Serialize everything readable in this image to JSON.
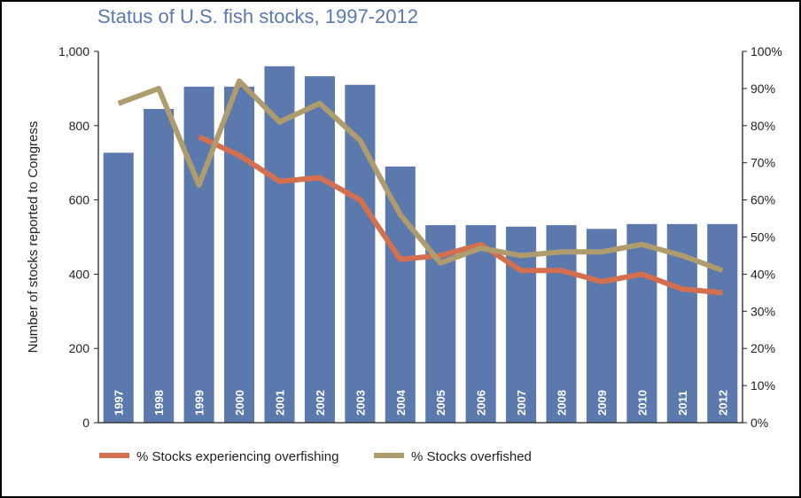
{
  "chart_data": {
    "type": "bar",
    "title": "Status of U.S. fish stocks, 1997-2012",
    "ylabel": "Number of stocks reported to Congress",
    "xlabel": "",
    "ylim": [
      0,
      1000
    ],
    "y2lim": [
      0,
      100
    ],
    "yticks": [
      "0",
      "200",
      "400",
      "600",
      "800",
      "1,000"
    ],
    "y2ticks": [
      "0%",
      "10%",
      "20%",
      "30%",
      "40%",
      "50%",
      "60%",
      "70%",
      "80%",
      "90%",
      "100%"
    ],
    "categories": [
      "1997",
      "1998",
      "1999",
      "2000",
      "2001",
      "2002",
      "2003",
      "2004",
      "2005",
      "2006",
      "2007",
      "2008",
      "2009",
      "2010",
      "2011",
      "2012"
    ],
    "bars": {
      "axis": "left",
      "color": "#5b79ad",
      "values": [
        727,
        845,
        905,
        905,
        960,
        933,
        910,
        690,
        532,
        532,
        528,
        532,
        522,
        535,
        535,
        535
      ]
    },
    "series": [
      {
        "name": "% Stocks experiencing overfishing",
        "axis": "right",
        "color": "#d4704f",
        "values": [
          null,
          null,
          77,
          72,
          65,
          66,
          60,
          44,
          45,
          48,
          41,
          41,
          38,
          40,
          36,
          35
        ]
      },
      {
        "name": "% Stocks overfished",
        "axis": "right",
        "color": "#ae9b6e",
        "values": [
          86,
          90,
          64,
          92,
          81,
          86,
          76,
          56,
          43,
          47,
          45,
          46,
          46,
          48,
          45,
          41
        ]
      }
    ],
    "legend_position": "bottom-left",
    "grid": false
  }
}
